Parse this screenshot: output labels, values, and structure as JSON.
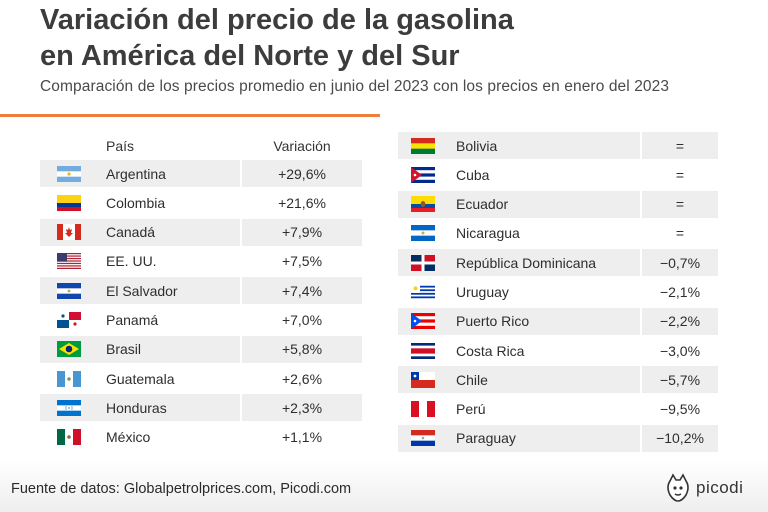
{
  "header": {
    "title_line1": "Variación del precio de la gasolina",
    "title_line2": "en América del Norte y del Sur",
    "subtitle": "Comparación de los precios promedio en junio del 2023 con los precios en enero del 2023"
  },
  "chart_data": {
    "type": "table",
    "columns": [
      "País",
      "Variación"
    ],
    "rows": [
      {
        "country": "Argentina",
        "variation": "+29,6%",
        "flag": "argentina-flag"
      },
      {
        "country": "Colombia",
        "variation": "+21,6%",
        "flag": "colombia-flag"
      },
      {
        "country": "Canadá",
        "variation": "+7,9%",
        "flag": "canada-flag"
      },
      {
        "country": "EE. UU.",
        "variation": "+7,5%",
        "flag": "usa-flag"
      },
      {
        "country": "El Salvador",
        "variation": "+7,4%",
        "flag": "el-salvador-flag"
      },
      {
        "country": "Panamá",
        "variation": "+7,0%",
        "flag": "panama-flag"
      },
      {
        "country": "Brasil",
        "variation": "+5,8%",
        "flag": "brazil-flag"
      },
      {
        "country": "Guatemala",
        "variation": "+2,6%",
        "flag": "guatemala-flag"
      },
      {
        "country": "Honduras",
        "variation": "+2,3%",
        "flag": "honduras-flag"
      },
      {
        "country": "México",
        "variation": "+1,1%",
        "flag": "mexico-flag"
      },
      {
        "country": "Bolivia",
        "variation": "=",
        "flag": "bolivia-flag"
      },
      {
        "country": "Cuba",
        "variation": "=",
        "flag": "cuba-flag"
      },
      {
        "country": "Ecuador",
        "variation": "=",
        "flag": "ecuador-flag"
      },
      {
        "country": "Nicaragua",
        "variation": "=",
        "flag": "nicaragua-flag"
      },
      {
        "country": "República Dominicana",
        "variation": "−0,7%",
        "flag": "dominican-republic-flag"
      },
      {
        "country": "Uruguay",
        "variation": "−2,1%",
        "flag": "uruguay-flag"
      },
      {
        "country": "Puerto Rico",
        "variation": "−2,2%",
        "flag": "puerto-rico-flag"
      },
      {
        "country": "Costa Rica",
        "variation": "−3,0%",
        "flag": "costa-rica-flag"
      },
      {
        "country": "Chile",
        "variation": "−5,7%",
        "flag": "chile-flag"
      },
      {
        "country": "Perú",
        "variation": "−9,5%",
        "flag": "peru-flag"
      },
      {
        "country": "Paraguay",
        "variation": "−10,2%",
        "flag": "paraguay-flag"
      }
    ]
  },
  "footer": {
    "source": "Fuente de datos: Globalpetrolprices.com, Picodi.com",
    "logo_text": "picodi",
    "logo_icon": "picodi-mascot-icon"
  },
  "colors": {
    "accent_rule": "#f07f3c",
    "row_shade": "#eeeeee",
    "title": "#3c3c3c"
  }
}
